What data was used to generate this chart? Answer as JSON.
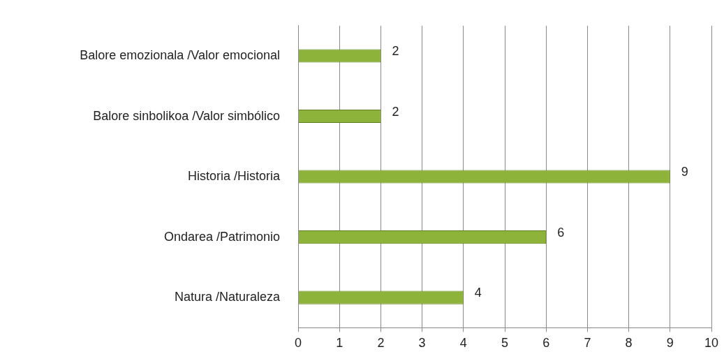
{
  "chart_data": {
    "type": "bar",
    "orientation": "horizontal",
    "categories": [
      "Balore emozionala /Valor emocional",
      "Balore sinbolikoa /Valor simbólico",
      "Historia /Historia",
      "Ondarea /Patrimonio",
      "Natura /Naturaleza"
    ],
    "values": [
      2,
      2,
      9,
      6,
      4
    ],
    "color": "#8db33a",
    "xlim": [
      0,
      10
    ],
    "xticks": [
      0,
      1,
      2,
      3,
      4,
      5,
      6,
      7,
      8,
      9,
      10
    ],
    "grid": "x",
    "legend": false,
    "data_labels": true
  }
}
